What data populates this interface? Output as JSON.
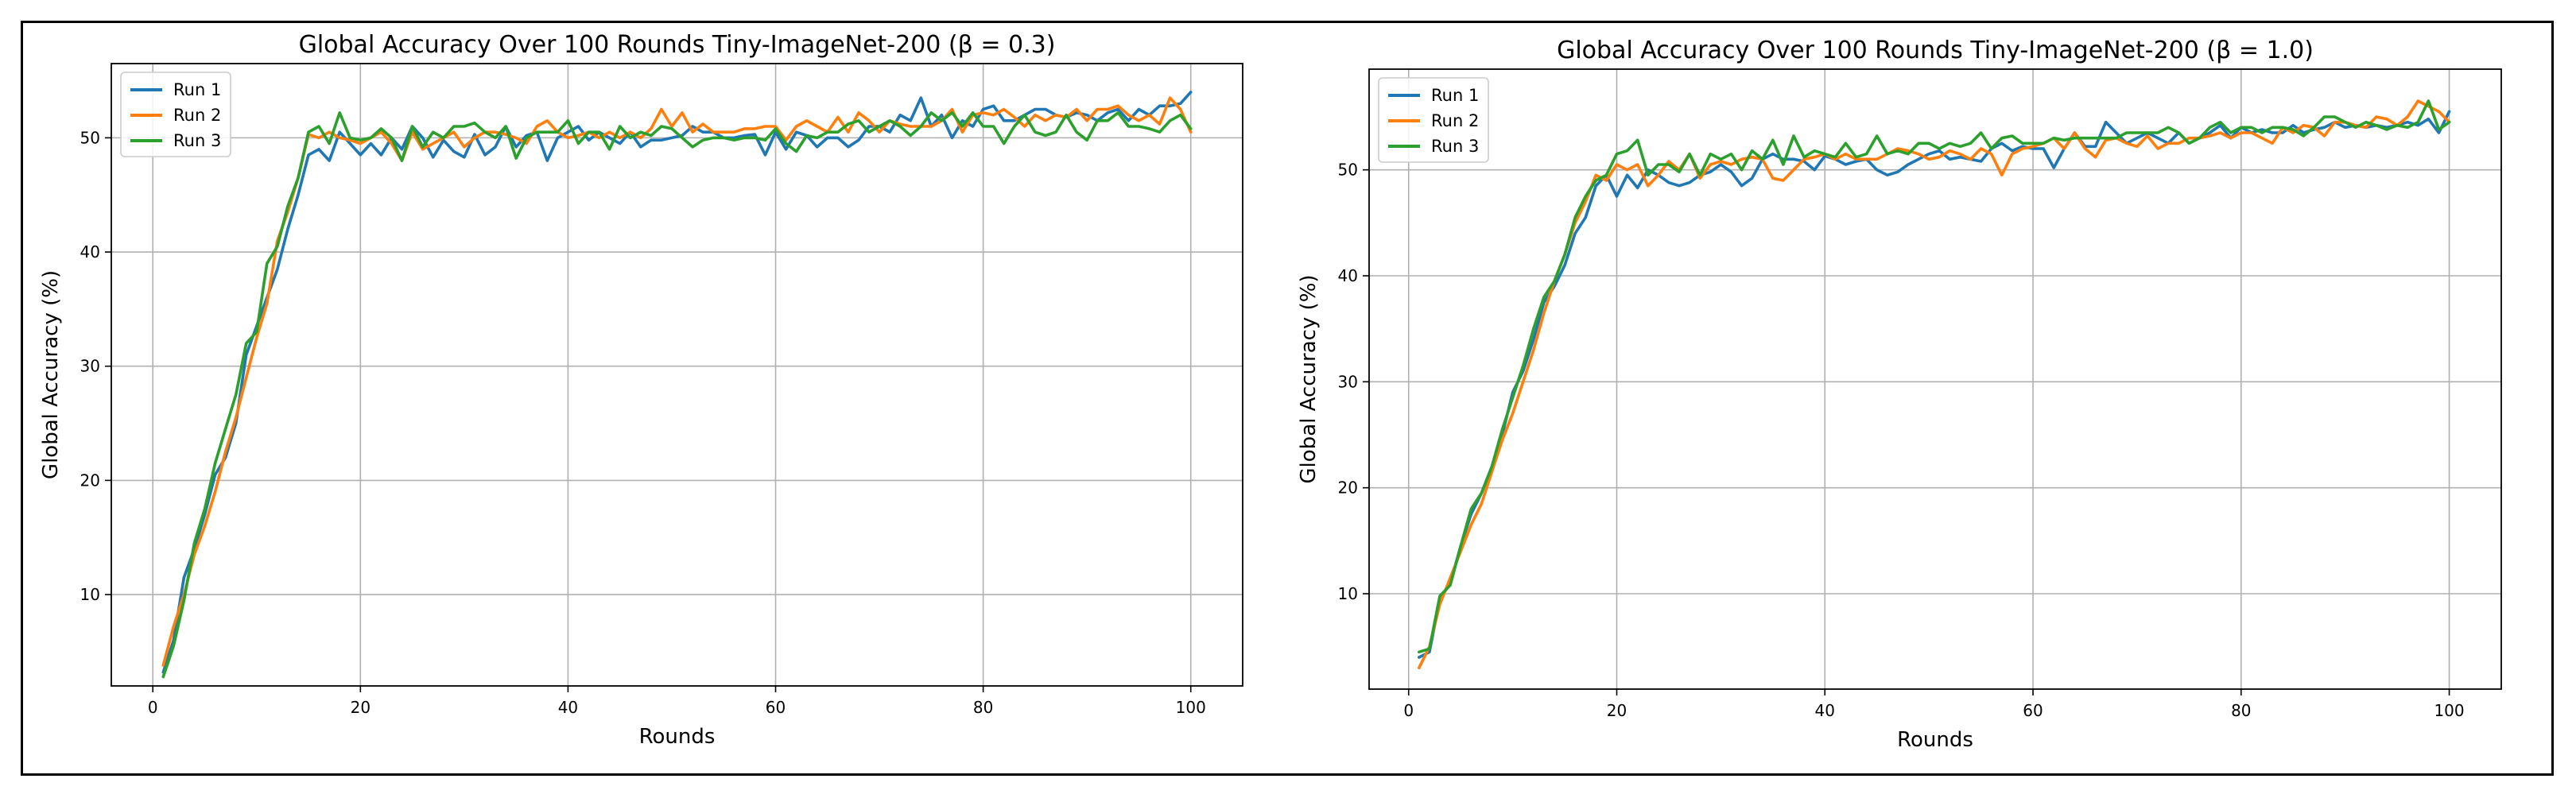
{
  "figure": {
    "colors": {
      "Run 1": "#1f77b4",
      "Run 2": "#ff7f0e",
      "Run 3": "#2ca02c"
    },
    "grid": true
  },
  "chart_data": [
    {
      "type": "line",
      "title": "Global Accuracy Over 100 Rounds Tiny-ImageNet-200 (β = 0.3)",
      "xlabel": "Rounds",
      "ylabel": "Global Accuracy (%)",
      "xlim": [
        -4,
        105
      ],
      "ylim": [
        2,
        56.5
      ],
      "xticks": [
        "0",
        "20",
        "40",
        "60",
        "80",
        "100"
      ],
      "yticks": [
        "10",
        "20",
        "30",
        "40",
        "50"
      ],
      "legend_position": "top-left",
      "x": [
        1,
        2,
        3,
        4,
        5,
        6,
        7,
        8,
        9,
        10,
        11,
        12,
        13,
        14,
        15,
        16,
        17,
        18,
        19,
        20,
        21,
        22,
        23,
        24,
        25,
        26,
        27,
        28,
        29,
        30,
        31,
        32,
        33,
        34,
        35,
        36,
        37,
        38,
        39,
        40,
        41,
        42,
        43,
        44,
        45,
        46,
        47,
        48,
        49,
        50,
        51,
        52,
        53,
        54,
        55,
        56,
        57,
        58,
        59,
        60,
        61,
        62,
        63,
        64,
        65,
        66,
        67,
        68,
        69,
        70,
        71,
        72,
        73,
        74,
        75,
        76,
        77,
        78,
        79,
        80,
        81,
        82,
        83,
        84,
        85,
        86,
        87,
        88,
        89,
        90,
        91,
        92,
        93,
        94,
        95,
        96,
        97,
        98,
        99,
        100
      ],
      "series": [
        {
          "name": "Run 1",
          "values": [
            3.2,
            6.0,
            11.5,
            14.0,
            17.0,
            20.5,
            22.0,
            25.0,
            31.0,
            33.5,
            36.0,
            38.5,
            42.0,
            45.0,
            48.5,
            49.0,
            48.0,
            50.5,
            49.5,
            48.5,
            49.5,
            48.5,
            50.0,
            49.0,
            51.0,
            50.0,
            48.3,
            49.8,
            48.8,
            48.3,
            50.3,
            48.5,
            49.2,
            51.0,
            49.2,
            50.2,
            50.5,
            48.0,
            50.0,
            50.5,
            51.0,
            49.8,
            50.5,
            50.0,
            49.5,
            50.5,
            49.2,
            49.8,
            49.8,
            50.0,
            50.2,
            51.0,
            50.5,
            50.5,
            50.0,
            50.0,
            50.2,
            50.3,
            48.5,
            50.5,
            49.0,
            50.5,
            50.2,
            49.2,
            50.0,
            50.0,
            49.2,
            49.8,
            51.0,
            51.0,
            50.5,
            52.0,
            51.5,
            53.5,
            51.0,
            52.0,
            50.0,
            51.5,
            51.0,
            52.5,
            52.8,
            51.5,
            51.5,
            52.0,
            52.5,
            52.5,
            52.0,
            51.8,
            52.2,
            52.0,
            51.5,
            52.2,
            52.5,
            51.5,
            52.5,
            52.0,
            52.8,
            52.8,
            53.0,
            54.0
          ]
        },
        {
          "name": "Run 2",
          "values": [
            3.8,
            7.2,
            10.0,
            13.5,
            16.0,
            19.0,
            22.5,
            25.5,
            29.0,
            32.5,
            35.5,
            41.0,
            43.5,
            46.5,
            50.3,
            50.0,
            50.5,
            50.0,
            49.8,
            49.5,
            50.0,
            50.5,
            49.5,
            48.0,
            50.5,
            49.0,
            49.5,
            50.0,
            50.5,
            49.2,
            50.0,
            50.5,
            50.5,
            50.3,
            50.0,
            49.5,
            51.0,
            51.5,
            50.5,
            50.0,
            50.2,
            50.5,
            50.0,
            50.5,
            50.0,
            50.5,
            50.0,
            50.8,
            52.5,
            51.0,
            52.2,
            50.5,
            51.2,
            50.5,
            50.5,
            50.5,
            50.8,
            50.8,
            51.0,
            51.0,
            49.8,
            51.0,
            51.5,
            51.0,
            50.5,
            51.8,
            50.5,
            52.2,
            51.5,
            50.5,
            51.5,
            51.2,
            51.0,
            51.0,
            51.0,
            51.5,
            52.5,
            50.5,
            52.0,
            52.2,
            52.0,
            52.5,
            51.8,
            51.0,
            52.0,
            51.5,
            52.0,
            51.8,
            52.5,
            51.5,
            52.5,
            52.5,
            52.8,
            52.0,
            51.5,
            52.0,
            51.2,
            53.5,
            52.5,
            50.5
          ]
        },
        {
          "name": "Run 3",
          "values": [
            2.8,
            5.5,
            9.5,
            14.5,
            17.5,
            21.5,
            24.5,
            27.5,
            32.0,
            33.0,
            39.0,
            40.5,
            44.0,
            46.5,
            50.5,
            51.0,
            49.5,
            52.2,
            50.0,
            49.8,
            50.0,
            50.8,
            50.0,
            48.0,
            51.0,
            49.2,
            50.5,
            50.0,
            51.0,
            51.0,
            51.3,
            50.5,
            50.0,
            51.0,
            48.2,
            50.0,
            50.5,
            50.5,
            50.5,
            51.5,
            49.5,
            50.5,
            50.5,
            49.0,
            51.0,
            50.0,
            50.5,
            50.2,
            51.0,
            50.8,
            50.0,
            49.2,
            49.8,
            50.0,
            50.0,
            49.8,
            50.0,
            50.0,
            49.8,
            50.8,
            49.5,
            48.8,
            50.2,
            50.0,
            50.5,
            50.5,
            51.2,
            51.5,
            50.5,
            51.0,
            51.5,
            51.0,
            50.2,
            51.0,
            52.2,
            51.5,
            52.2,
            51.0,
            52.2,
            51.0,
            51.0,
            49.5,
            51.0,
            52.0,
            50.5,
            50.2,
            50.5,
            52.0,
            50.5,
            49.8,
            51.5,
            51.5,
            52.2,
            51.0,
            51.0,
            50.8,
            50.5,
            51.5,
            52.0,
            50.8
          ]
        }
      ]
    },
    {
      "type": "line",
      "title": "Global Accuracy Over 100 Rounds Tiny-ImageNet-200 (β = 1.0)",
      "xlabel": "Rounds",
      "ylabel": "Global Accuracy (%)",
      "xlim": [
        -3.8,
        105
      ],
      "ylim": [
        1,
        59.5
      ],
      "xticks": [
        "0",
        "20",
        "40",
        "60",
        "80",
        "100"
      ],
      "yticks": [
        "10",
        "20",
        "30",
        "40",
        "50"
      ],
      "legend_position": "top-left",
      "x": [
        1,
        2,
        3,
        4,
        5,
        6,
        7,
        8,
        9,
        10,
        11,
        12,
        13,
        14,
        15,
        16,
        17,
        18,
        19,
        20,
        21,
        22,
        23,
        24,
        25,
        26,
        27,
        28,
        29,
        30,
        31,
        32,
        33,
        34,
        35,
        36,
        37,
        38,
        39,
        40,
        41,
        42,
        43,
        44,
        45,
        46,
        47,
        48,
        49,
        50,
        51,
        52,
        53,
        54,
        55,
        56,
        57,
        58,
        59,
        60,
        61,
        62,
        63,
        64,
        65,
        66,
        67,
        68,
        69,
        70,
        71,
        72,
        73,
        74,
        75,
        76,
        77,
        78,
        79,
        80,
        81,
        82,
        83,
        84,
        85,
        86,
        87,
        88,
        89,
        90,
        91,
        92,
        93,
        94,
        95,
        96,
        97,
        98,
        99,
        100
      ],
      "series": [
        {
          "name": "Run 1",
          "values": [
            4.0,
            4.5,
            9.5,
            11.0,
            14.5,
            17.5,
            19.5,
            22.0,
            25.0,
            29.0,
            31.0,
            34.0,
            37.5,
            39.0,
            41.0,
            44.0,
            45.5,
            48.5,
            49.5,
            47.5,
            49.5,
            48.3,
            50.0,
            49.5,
            48.8,
            48.5,
            48.8,
            49.5,
            49.8,
            50.5,
            49.8,
            48.5,
            49.2,
            51.0,
            51.5,
            51.0,
            51.0,
            50.8,
            50.0,
            51.3,
            51.0,
            50.5,
            50.8,
            51.0,
            50.0,
            49.5,
            49.8,
            50.5,
            51.0,
            51.5,
            51.8,
            51.0,
            51.2,
            51.0,
            50.8,
            52.0,
            52.5,
            51.8,
            52.2,
            52.0,
            52.0,
            50.2,
            52.0,
            53.5,
            52.2,
            52.2,
            54.5,
            53.5,
            52.5,
            53.0,
            53.5,
            53.0,
            52.5,
            53.5,
            52.5,
            53.0,
            53.5,
            54.2,
            53.0,
            54.0,
            53.5,
            53.8,
            53.5,
            53.5,
            54.2,
            53.5,
            53.8,
            54.0,
            54.5,
            54.0,
            54.2,
            54.0,
            54.2,
            54.0,
            54.2,
            54.5,
            54.2,
            54.8,
            53.5,
            55.5
          ]
        },
        {
          "name": "Run 2",
          "values": [
            3.0,
            5.0,
            9.0,
            11.5,
            14.0,
            16.5,
            18.5,
            21.5,
            24.5,
            27.0,
            30.0,
            33.0,
            36.5,
            39.5,
            42.0,
            45.0,
            47.0,
            49.5,
            49.0,
            50.5,
            50.0,
            50.5,
            48.5,
            49.5,
            50.8,
            50.0,
            51.5,
            49.2,
            50.5,
            50.8,
            50.5,
            51.0,
            51.2,
            51.0,
            49.2,
            49.0,
            50.0,
            51.0,
            51.2,
            51.5,
            51.0,
            51.5,
            51.0,
            51.0,
            51.0,
            51.5,
            52.0,
            51.8,
            51.5,
            51.0,
            51.2,
            51.8,
            51.5,
            51.0,
            52.0,
            51.5,
            49.5,
            51.5,
            52.0,
            52.2,
            52.5,
            53.0,
            52.0,
            53.5,
            52.0,
            51.2,
            52.8,
            53.0,
            52.5,
            52.2,
            53.2,
            52.0,
            52.5,
            52.5,
            53.0,
            53.0,
            53.2,
            53.5,
            53.0,
            53.5,
            53.5,
            53.0,
            52.5,
            54.0,
            53.5,
            54.2,
            54.0,
            53.2,
            54.5,
            54.5,
            54.2,
            54.0,
            55.0,
            54.8,
            54.2,
            55.0,
            56.5,
            56.0,
            55.5,
            54.5
          ]
        },
        {
          "name": "Run 3",
          "values": [
            4.5,
            4.8,
            9.8,
            10.8,
            14.5,
            18.0,
            19.5,
            22.0,
            25.5,
            28.5,
            31.5,
            35.0,
            38.0,
            39.5,
            42.0,
            45.5,
            47.5,
            49.0,
            49.5,
            51.5,
            51.8,
            52.8,
            49.5,
            50.5,
            50.5,
            49.8,
            51.5,
            49.5,
            51.5,
            51.0,
            51.5,
            50.0,
            51.8,
            51.0,
            52.8,
            50.5,
            53.2,
            51.2,
            51.8,
            51.5,
            51.2,
            52.5,
            51.2,
            51.5,
            53.2,
            51.5,
            51.8,
            51.5,
            52.5,
            52.5,
            52.0,
            52.5,
            52.2,
            52.5,
            53.5,
            52.0,
            53.0,
            53.2,
            52.5,
            52.5,
            52.5,
            53.0,
            52.8,
            53.0,
            53.0,
            53.0,
            53.0,
            53.0,
            53.5,
            53.5,
            53.5,
            53.5,
            54.0,
            53.5,
            52.5,
            53.0,
            54.0,
            54.5,
            53.5,
            54.0,
            54.0,
            53.5,
            54.0,
            54.0,
            53.8,
            53.2,
            54.0,
            55.0,
            55.0,
            54.5,
            54.0,
            54.5,
            54.2,
            53.8,
            54.2,
            54.0,
            54.5,
            56.5,
            53.8,
            54.5
          ]
        }
      ]
    }
  ]
}
